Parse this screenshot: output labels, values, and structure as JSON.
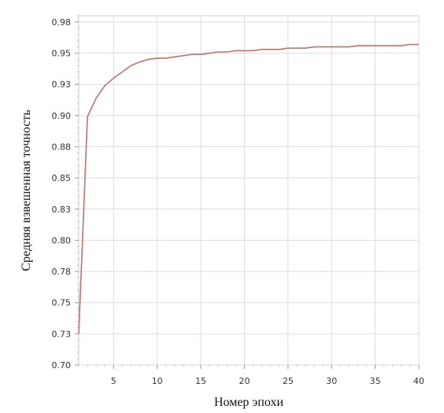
{
  "chart_data": {
    "type": "line",
    "title": "",
    "xlabel": "Номер эпохи",
    "ylabel": "Средняя взвешенная точность",
    "xlim": [
      1,
      40
    ],
    "ylim": [
      0.7,
      0.98
    ],
    "grid": true,
    "legend": "none",
    "line_color": "#c0736a",
    "x_ticks": [
      {
        "value": 5,
        "label": "5"
      },
      {
        "value": 10,
        "label": "10"
      },
      {
        "value": 15,
        "label": "15"
      },
      {
        "value": 20,
        "label": "20"
      },
      {
        "value": 25,
        "label": "25"
      },
      {
        "value": 30,
        "label": "30"
      },
      {
        "value": 35,
        "label": "35"
      },
      {
        "value": 40,
        "label": "40"
      }
    ],
    "y_ticks": [
      {
        "value": 0.7,
        "label": "0.70"
      },
      {
        "value": 0.725,
        "label": "0.73"
      },
      {
        "value": 0.75,
        "label": "0.75"
      },
      {
        "value": 0.775,
        "label": "0.78"
      },
      {
        "value": 0.8,
        "label": "0.80"
      },
      {
        "value": 0.825,
        "label": "0.83"
      },
      {
        "value": 0.85,
        "label": "0.85"
      },
      {
        "value": 0.875,
        "label": "0.88"
      },
      {
        "value": 0.9,
        "label": "0.90"
      },
      {
        "value": 0.925,
        "label": "0.93"
      },
      {
        "value": 0.95,
        "label": "0.95"
      },
      {
        "value": 0.975,
        "label": "0.98"
      }
    ],
    "series": [
      {
        "x": [
          1,
          2,
          3,
          4,
          5,
          6,
          7,
          8,
          9,
          10,
          11,
          12,
          13,
          14,
          15,
          16,
          17,
          18,
          19,
          20,
          21,
          22,
          23,
          24,
          25,
          26,
          27,
          28,
          29,
          30,
          31,
          32,
          33,
          34,
          35,
          36,
          37,
          38,
          39,
          40
        ],
        "values": [
          0.725,
          0.899,
          0.914,
          0.924,
          0.93,
          0.935,
          0.94,
          0.943,
          0.945,
          0.946,
          0.946,
          0.947,
          0.948,
          0.949,
          0.949,
          0.95,
          0.951,
          0.951,
          0.952,
          0.952,
          0.952,
          0.953,
          0.953,
          0.953,
          0.954,
          0.954,
          0.954,
          0.955,
          0.955,
          0.955,
          0.955,
          0.955,
          0.956,
          0.956,
          0.956,
          0.956,
          0.956,
          0.956,
          0.957,
          0.957
        ]
      }
    ]
  }
}
